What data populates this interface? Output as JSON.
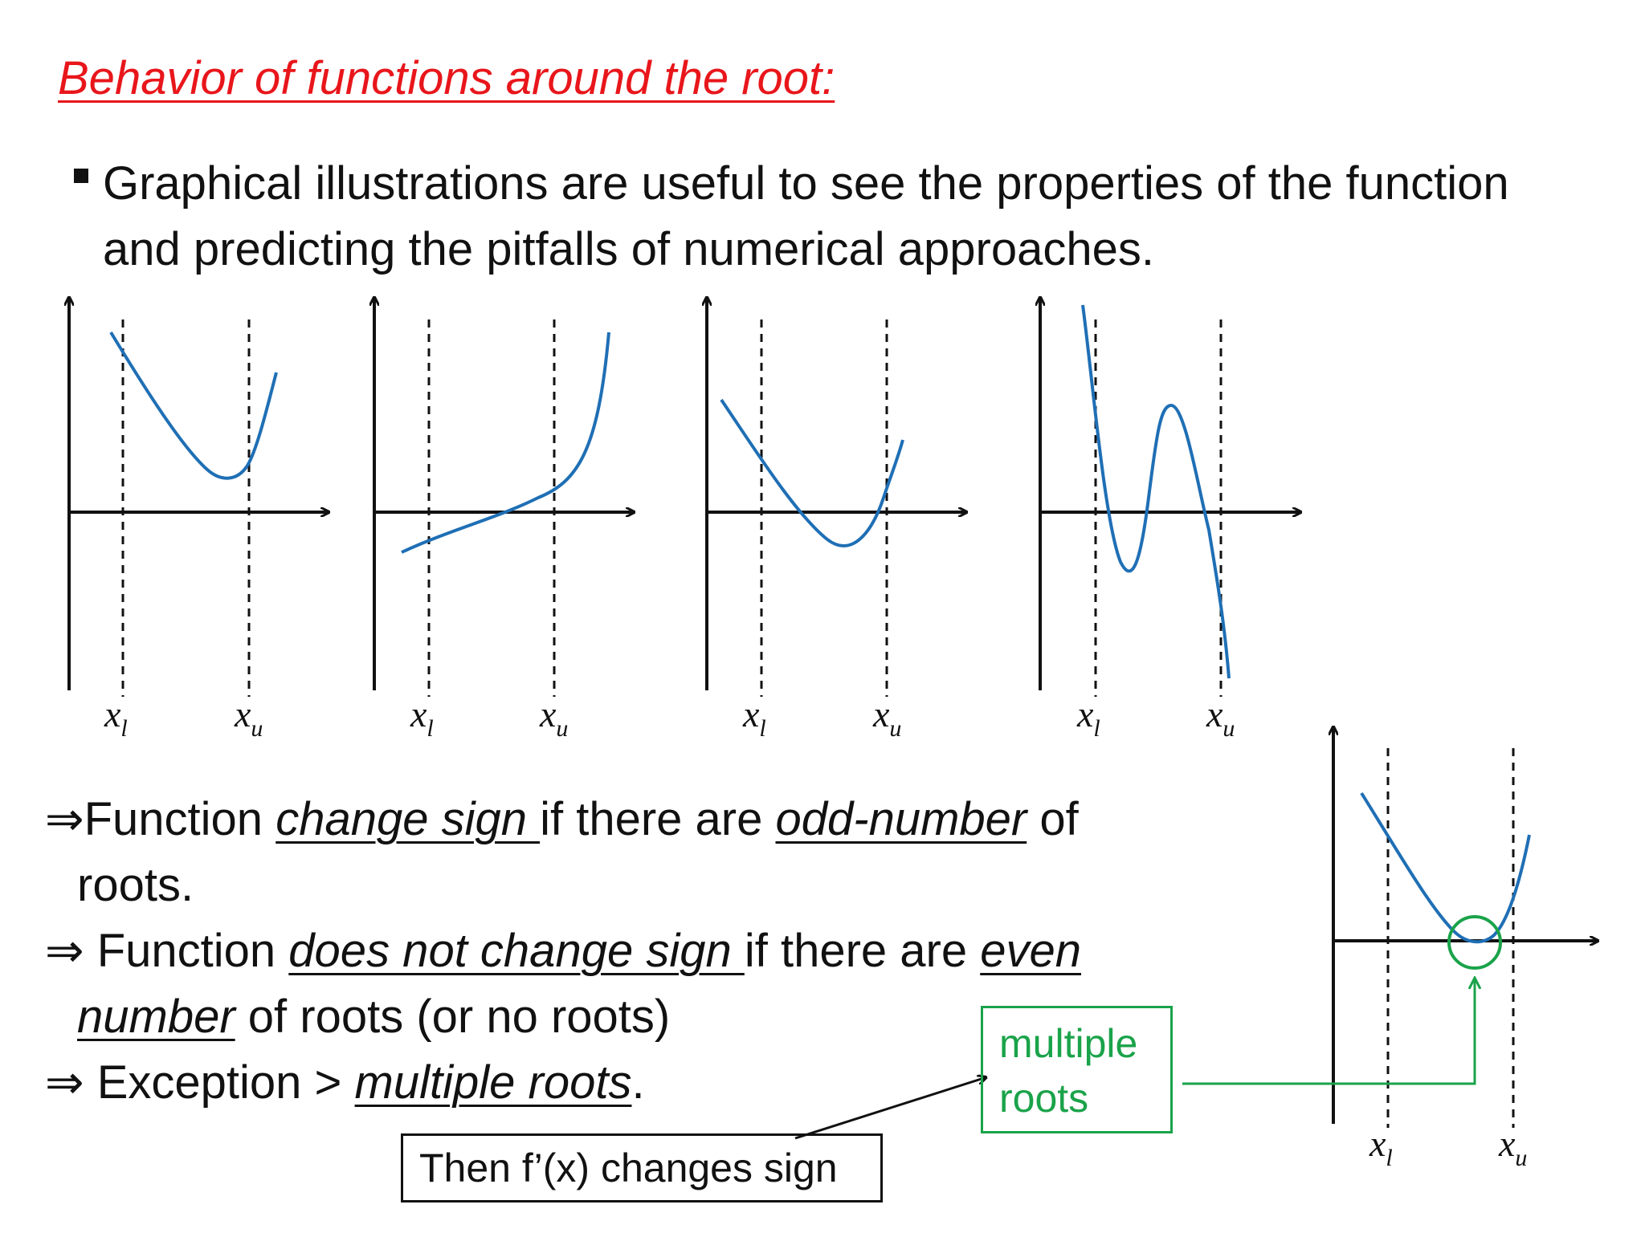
{
  "title": "Behavior of functions around the root:",
  "bullet": "Graphical illustrations are useful to see the properties of the function and predicting the pitfalls of numerical approaches.",
  "axis_labels": {
    "x_lower": "x",
    "x_lower_sub": "l",
    "x_upper": "x",
    "x_upper_sub": "u"
  },
  "statements": {
    "s1": {
      "arrow": "⇒",
      "pre": "Function ",
      "em1": "change sign ",
      "mid": "if there are ",
      "em2": "odd-number",
      "post": " of",
      "line2": "roots."
    },
    "s2": {
      "arrow": "⇒",
      "pre": " Function ",
      "em1": "does not change sign ",
      "mid": "if there are ",
      "em2": "even",
      "line2_em": "number",
      "line2_post": " of roots (or no roots)"
    },
    "s3": {
      "arrow": "⇒",
      "pre": " Exception > ",
      "em": "multiple roots",
      "post": "."
    }
  },
  "callouts": {
    "derivative": "Then f’(x) changes sign",
    "multiple_line1": "multiple",
    "multiple_line2": "roots"
  },
  "colors": {
    "title": "#e8161b",
    "curve": "#1f6fb5",
    "highlight": "#1aa34a",
    "ink": "#111111"
  }
}
